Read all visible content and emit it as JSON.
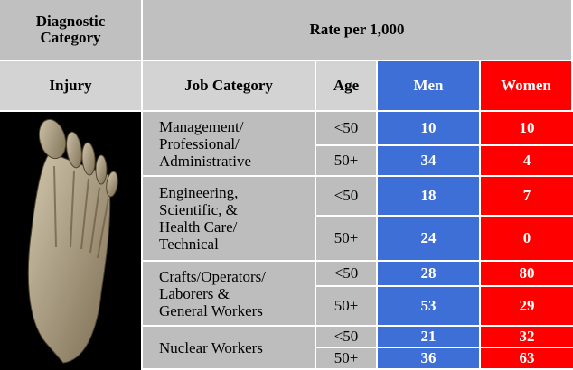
{
  "header": {
    "diagnostic_category": [
      "Diagnostic",
      "Category"
    ],
    "rate": "Rate per 1,000"
  },
  "columns": [
    "Injury",
    "Job Category",
    "Age",
    "Men",
    "Women"
  ],
  "groups": [
    {
      "job": [
        "Management/",
        "Professional/",
        "Administrative"
      ],
      "rows": [
        {
          "age": "<50",
          "men": 10,
          "women": 10
        },
        {
          "age": "50+",
          "men": 34,
          "women": 4
        }
      ]
    },
    {
      "job": [
        "Engineering,",
        "Scientific, &",
        "Health Care/",
        "Technical"
      ],
      "rows": [
        {
          "age": "<50",
          "men": 18,
          "women": 7
        },
        {
          "age": "50+",
          "men": 24,
          "women": 0
        }
      ]
    },
    {
      "job": [
        "Crafts/Operators/",
        "Laborers &",
        "General Workers"
      ],
      "rows": [
        {
          "age": "<50",
          "men": 28,
          "women": 80
        },
        {
          "age": "50+",
          "men": 53,
          "women": 29
        }
      ]
    },
    {
      "job": [
        "Nuclear Workers"
      ],
      "rows": [
        {
          "age": "<50",
          "men": 21,
          "women": 32
        },
        {
          "age": "50+",
          "men": 36,
          "women": 63
        }
      ]
    }
  ]
}
